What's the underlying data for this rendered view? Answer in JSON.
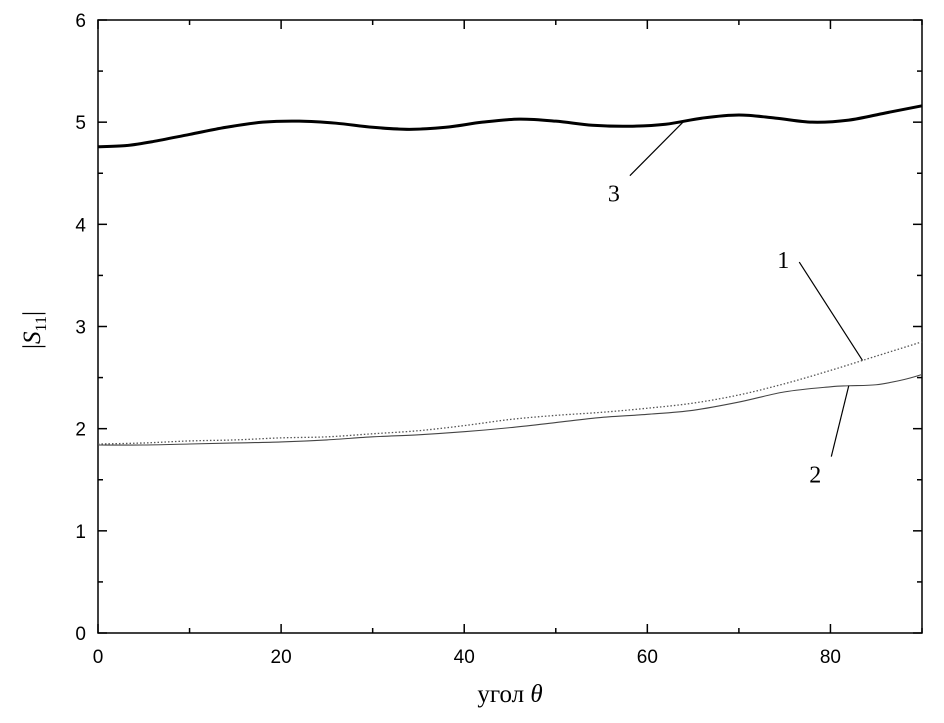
{
  "chart_data": {
    "type": "line",
    "title": "",
    "xlabel": "угол θ",
    "ylabel": "|S11|",
    "xlim": [
      0,
      90
    ],
    "ylim": [
      0,
      6
    ],
    "x_ticks": [
      "0",
      "20",
      "40",
      "60",
      "80"
    ],
    "y_ticks": [
      "0",
      "1",
      "2",
      "3",
      "4",
      "5",
      "6"
    ],
    "grid": false,
    "legend": "none",
    "series": [
      {
        "label": "1",
        "style": "dotted",
        "x": [
          0,
          5,
          10,
          15,
          20,
          25,
          30,
          35,
          40,
          45,
          50,
          55,
          60,
          65,
          70,
          75,
          80,
          85,
          90
        ],
        "y": [
          1.85,
          1.86,
          1.88,
          1.89,
          1.91,
          1.92,
          1.95,
          1.98,
          2.03,
          2.09,
          2.13,
          2.16,
          2.2,
          2.25,
          2.33,
          2.44,
          2.57,
          2.71,
          2.85
        ]
      },
      {
        "label": "2",
        "style": "solid-thin",
        "x": [
          0,
          5,
          10,
          15,
          20,
          25,
          30,
          35,
          40,
          45,
          50,
          55,
          60,
          65,
          70,
          75,
          80,
          82,
          85,
          88,
          90
        ],
        "y": [
          1.84,
          1.84,
          1.85,
          1.86,
          1.87,
          1.89,
          1.92,
          1.94,
          1.97,
          2.01,
          2.06,
          2.11,
          2.14,
          2.18,
          2.26,
          2.36,
          2.41,
          2.42,
          2.43,
          2.48,
          2.53
        ]
      },
      {
        "label": "3",
        "style": "solid-thick",
        "x": [
          0,
          3,
          6,
          10,
          14,
          18,
          22,
          26,
          30,
          34,
          38,
          42,
          46,
          50,
          54,
          58,
          62,
          66,
          70,
          74,
          78,
          82,
          86,
          90
        ],
        "y": [
          4.76,
          4.77,
          4.81,
          4.88,
          4.95,
          5.0,
          5.01,
          4.99,
          4.95,
          4.93,
          4.95,
          5.0,
          5.03,
          5.01,
          4.97,
          4.96,
          4.98,
          5.04,
          5.07,
          5.04,
          5.0,
          5.02,
          5.09,
          5.16
        ]
      }
    ],
    "annotations": [
      {
        "text": "1",
        "series": 0,
        "at_x": 83.5,
        "label_x": 75.5,
        "label_y": 3.65
      },
      {
        "text": "2",
        "series": 1,
        "at_x": 82,
        "label_x": 79,
        "label_y": 1.55
      },
      {
        "text": "3",
        "series": 2,
        "at_x": 64,
        "label_x": 57,
        "label_y": 4.3
      }
    ]
  }
}
